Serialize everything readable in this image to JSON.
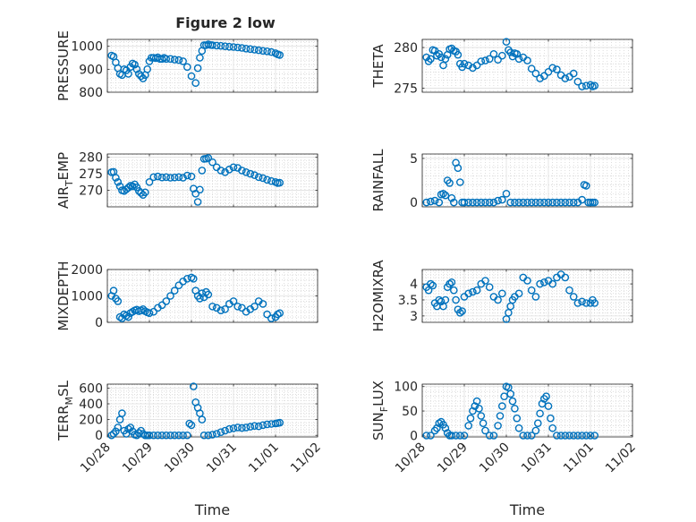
{
  "title": "Figure 2 low",
  "xlabel": "Time",
  "x_tick_labels": [
    "10/28",
    "10/29",
    "10/30",
    "10/31",
    "11/01",
    "11/02"
  ],
  "marker_color": "#0072BD",
  "chart_data": [
    {
      "type": "scatter",
      "ylabel": "PRESSURE",
      "ylim": [
        800,
        1030
      ],
      "yticks": [
        800,
        900,
        1000
      ],
      "x": [
        0.1,
        0.15,
        0.2,
        0.25,
        0.3,
        0.35,
        0.4,
        0.45,
        0.5,
        0.55,
        0.6,
        0.65,
        0.7,
        0.75,
        0.8,
        0.85,
        0.9,
        0.95,
        1.0,
        1.05,
        1.1,
        1.15,
        1.2,
        1.25,
        1.3,
        1.35,
        1.4,
        1.5,
        1.6,
        1.7,
        1.8,
        1.9,
        2.0,
        2.1,
        2.15,
        2.2,
        2.25,
        2.3,
        2.35,
        2.4,
        2.45,
        2.5,
        2.6,
        2.7,
        2.8,
        2.9,
        3.0,
        3.1,
        3.2,
        3.3,
        3.4,
        3.5,
        3.6,
        3.7,
        3.8,
        3.9,
        4.0,
        4.05,
        4.1
      ],
      "y": [
        960,
        955,
        930,
        905,
        880,
        875,
        900,
        895,
        880,
        910,
        925,
        920,
        900,
        880,
        870,
        860,
        875,
        900,
        935,
        950,
        950,
        948,
        952,
        945,
        945,
        950,
        945,
        945,
        942,
        940,
        935,
        910,
        870,
        840,
        905,
        950,
        980,
        1005,
        1005,
        1008,
        1006,
        1005,
        1003,
        1002,
        1000,
        998,
        997,
        995,
        993,
        990,
        988,
        985,
        983,
        980,
        978,
        975,
        970,
        965,
        962
      ]
    },
    {
      "type": "scatter",
      "ylabel": "THETA",
      "ylim": [
        274.5,
        281
      ],
      "yticks": [
        275,
        280
      ],
      "x": [
        0.1,
        0.15,
        0.2,
        0.25,
        0.3,
        0.35,
        0.4,
        0.45,
        0.5,
        0.55,
        0.6,
        0.65,
        0.7,
        0.75,
        0.8,
        0.85,
        0.9,
        0.95,
        1.0,
        1.1,
        1.2,
        1.3,
        1.4,
        1.5,
        1.6,
        1.7,
        1.8,
        1.9,
        2.0,
        2.05,
        2.1,
        2.15,
        2.2,
        2.25,
        2.3,
        2.4,
        2.5,
        2.6,
        2.7,
        2.8,
        2.9,
        3.0,
        3.1,
        3.2,
        3.3,
        3.4,
        3.5,
        3.6,
        3.7,
        3.8,
        3.9,
        4.0,
        4.05,
        4.1
      ],
      "y": [
        278.8,
        278.3,
        278.6,
        279.7,
        279.6,
        279.0,
        279.2,
        278.8,
        277.8,
        278.6,
        279.1,
        279.8,
        279.9,
        279.6,
        279.5,
        279.1,
        278.0,
        277.6,
        278.0,
        277.8,
        277.5,
        277.8,
        278.3,
        278.4,
        278.6,
        279.2,
        278.5,
        279.0,
        280.7,
        279.7,
        279.4,
        278.9,
        279.3,
        279.2,
        278.6,
        278.8,
        278.4,
        277.4,
        276.8,
        276.2,
        276.5,
        277.0,
        277.5,
        277.3,
        276.6,
        276.2,
        276.4,
        276.8,
        275.8,
        275.2,
        275.3,
        275.4,
        275.2,
        275.3
      ]
    },
    {
      "type": "scatter",
      "ylabel": "AIR_TEMP",
      "ylim": [
        265,
        281
      ],
      "yticks": [
        270,
        275,
        280
      ],
      "x": [
        0.1,
        0.15,
        0.2,
        0.25,
        0.3,
        0.35,
        0.4,
        0.45,
        0.5,
        0.55,
        0.6,
        0.65,
        0.7,
        0.75,
        0.8,
        0.85,
        0.9,
        1.0,
        1.1,
        1.2,
        1.3,
        1.4,
        1.5,
        1.6,
        1.7,
        1.8,
        1.9,
        2.0,
        2.05,
        2.1,
        2.15,
        2.2,
        2.25,
        2.3,
        2.35,
        2.4,
        2.5,
        2.6,
        2.7,
        2.8,
        2.9,
        3.0,
        3.1,
        3.2,
        3.3,
        3.4,
        3.5,
        3.6,
        3.7,
        3.8,
        3.9,
        4.0,
        4.05,
        4.1
      ],
      "y": [
        275.5,
        275.6,
        273.8,
        272.5,
        271.2,
        270.0,
        269.8,
        270.3,
        270.8,
        271.4,
        271.2,
        271.8,
        270.9,
        269.8,
        269.2,
        268.6,
        269.4,
        272.5,
        274.0,
        274.2,
        273.9,
        274.0,
        273.8,
        273.9,
        274.0,
        273.8,
        274.5,
        274.2,
        270.5,
        269.0,
        266.5,
        270.2,
        276.0,
        279.5,
        279.6,
        279.8,
        278.5,
        277.0,
        276.0,
        275.5,
        276.3,
        277.0,
        276.8,
        276.0,
        275.5,
        275.0,
        274.6,
        274.0,
        273.7,
        273.2,
        272.8,
        272.5,
        272.2,
        272.3
      ]
    },
    {
      "type": "scatter",
      "ylabel": "RAINFALL",
      "ylim": [
        -0.5,
        5.5
      ],
      "yticks": [
        0,
        5
      ],
      "x": [
        0.1,
        0.2,
        0.3,
        0.4,
        0.45,
        0.5,
        0.55,
        0.6,
        0.65,
        0.7,
        0.75,
        0.8,
        0.85,
        0.9,
        0.95,
        1.0,
        1.1,
        1.2,
        1.3,
        1.4,
        1.5,
        1.6,
        1.7,
        1.8,
        1.9,
        2.0,
        2.1,
        2.2,
        2.3,
        2.4,
        2.5,
        2.6,
        2.7,
        2.8,
        2.9,
        3.0,
        3.1,
        3.2,
        3.3,
        3.4,
        3.5,
        3.6,
        3.7,
        3.8,
        3.85,
        3.9,
        3.95,
        4.0,
        4.05,
        4.1
      ],
      "y": [
        0.0,
        0.1,
        0.2,
        0.0,
        0.9,
        1.0,
        0.8,
        2.5,
        2.2,
        0.5,
        0.0,
        4.5,
        3.9,
        2.3,
        0.0,
        0.0,
        0.0,
        0.0,
        0.0,
        0.0,
        0.0,
        0.0,
        0.0,
        0.2,
        0.3,
        1.0,
        0.0,
        0.0,
        0.0,
        0.0,
        0.0,
        0.0,
        0.0,
        0.0,
        0.0,
        0.0,
        0.0,
        0.0,
        0.0,
        0.0,
        0.0,
        0.0,
        0.0,
        0.3,
        2.0,
        1.9,
        0.0,
        0.0,
        0.0,
        0.0
      ]
    },
    {
      "type": "scatter",
      "ylabel": "MIXDEPTH",
      "ylim": [
        0,
        2000
      ],
      "yticks": [
        0,
        1000,
        2000
      ],
      "x": [
        0.1,
        0.15,
        0.2,
        0.25,
        0.3,
        0.35,
        0.4,
        0.45,
        0.5,
        0.55,
        0.6,
        0.65,
        0.7,
        0.75,
        0.8,
        0.85,
        0.9,
        0.95,
        1.0,
        1.1,
        1.2,
        1.3,
        1.4,
        1.5,
        1.6,
        1.7,
        1.8,
        1.9,
        2.0,
        2.05,
        2.1,
        2.15,
        2.2,
        2.25,
        2.3,
        2.35,
        2.4,
        2.5,
        2.6,
        2.7,
        2.8,
        2.9,
        3.0,
        3.1,
        3.2,
        3.3,
        3.4,
        3.5,
        3.6,
        3.7,
        3.8,
        3.9,
        4.0,
        4.05,
        4.1
      ],
      "y": [
        1000,
        1200,
        900,
        800,
        200,
        150,
        300,
        250,
        200,
        350,
        400,
        450,
        480,
        420,
        450,
        500,
        420,
        380,
        350,
        400,
        550,
        650,
        800,
        1000,
        1200,
        1400,
        1550,
        1650,
        1700,
        1650,
        1200,
        1000,
        900,
        1100,
        950,
        1150,
        1050,
        600,
        550,
        450,
        500,
        700,
        800,
        600,
        550,
        400,
        500,
        600,
        800,
        700,
        300,
        150,
        200,
        300,
        350
      ]
    },
    {
      "type": "scatter",
      "ylabel": "H2OMIXRA",
      "ylim": [
        2.8,
        4.45
      ],
      "yticks": [
        3,
        3.5,
        4
      ],
      "x": [
        0.1,
        0.15,
        0.2,
        0.25,
        0.3,
        0.35,
        0.4,
        0.45,
        0.5,
        0.55,
        0.6,
        0.65,
        0.7,
        0.75,
        0.8,
        0.85,
        0.9,
        0.95,
        1.0,
        1.1,
        1.2,
        1.3,
        1.4,
        1.5,
        1.6,
        1.7,
        1.8,
        1.9,
        2.0,
        2.05,
        2.1,
        2.15,
        2.2,
        2.3,
        2.4,
        2.5,
        2.6,
        2.7,
        2.8,
        2.9,
        3.0,
        3.1,
        3.2,
        3.3,
        3.4,
        3.5,
        3.6,
        3.7,
        3.8,
        3.9,
        4.0,
        4.05,
        4.1
      ],
      "y": [
        3.9,
        3.8,
        4.0,
        3.95,
        3.4,
        3.3,
        3.5,
        3.45,
        3.3,
        3.5,
        3.9,
        4.0,
        4.05,
        3.8,
        3.5,
        3.2,
        3.1,
        3.15,
        3.6,
        3.7,
        3.75,
        3.8,
        4.0,
        4.1,
        3.9,
        3.6,
        3.5,
        3.7,
        2.9,
        3.1,
        3.3,
        3.5,
        3.6,
        3.7,
        4.2,
        4.1,
        3.8,
        3.6,
        4.0,
        4.05,
        4.1,
        4.0,
        4.2,
        4.3,
        4.2,
        3.8,
        3.6,
        3.4,
        3.45,
        3.4,
        3.4,
        3.5,
        3.4
      ]
    },
    {
      "type": "scatter",
      "ylabel": "TERR_MSL",
      "ylim": [
        -20,
        650
      ],
      "yticks": [
        0,
        200,
        400,
        600
      ],
      "x": [
        0.1,
        0.15,
        0.2,
        0.25,
        0.3,
        0.35,
        0.4,
        0.45,
        0.5,
        0.55,
        0.6,
        0.65,
        0.7,
        0.75,
        0.8,
        0.85,
        0.9,
        0.95,
        1.0,
        1.1,
        1.2,
        1.3,
        1.4,
        1.5,
        1.6,
        1.7,
        1.8,
        1.9,
        1.95,
        2.0,
        2.05,
        2.1,
        2.15,
        2.2,
        2.25,
        2.3,
        2.4,
        2.5,
        2.6,
        2.7,
        2.8,
        2.9,
        3.0,
        3.1,
        3.2,
        3.3,
        3.4,
        3.5,
        3.6,
        3.7,
        3.8,
        3.9,
        4.0,
        4.05,
        4.1
      ],
      "y": [
        0,
        20,
        50,
        100,
        200,
        280,
        60,
        20,
        80,
        100,
        50,
        10,
        0,
        30,
        60,
        20,
        0,
        0,
        0,
        0,
        0,
        0,
        0,
        0,
        0,
        0,
        0,
        0,
        150,
        130,
        620,
        420,
        350,
        280,
        200,
        0,
        0,
        10,
        20,
        40,
        60,
        80,
        90,
        100,
        95,
        100,
        110,
        120,
        115,
        130,
        140,
        145,
        150,
        155,
        160
      ]
    },
    {
      "type": "scatter",
      "ylabel": "SUN_FLUX",
      "ylim": [
        -3,
        105
      ],
      "yticks": [
        0,
        50,
        100
      ],
      "x": [
        0.1,
        0.2,
        0.3,
        0.35,
        0.4,
        0.45,
        0.5,
        0.55,
        0.6,
        0.65,
        0.7,
        0.8,
        0.9,
        1.0,
        1.1,
        1.15,
        1.2,
        1.25,
        1.3,
        1.35,
        1.4,
        1.45,
        1.5,
        1.6,
        1.7,
        1.8,
        1.85,
        1.9,
        1.95,
        2.0,
        2.05,
        2.1,
        2.15,
        2.2,
        2.25,
        2.3,
        2.4,
        2.5,
        2.6,
        2.7,
        2.75,
        2.8,
        2.85,
        2.9,
        2.95,
        3.0,
        3.05,
        3.1,
        3.2,
        3.3,
        3.4,
        3.5,
        3.6,
        3.7,
        3.8,
        3.9,
        4.0,
        4.1
      ],
      "y": [
        0,
        0,
        10,
        15,
        25,
        28,
        22,
        15,
        5,
        0,
        0,
        0,
        0,
        0,
        20,
        35,
        50,
        60,
        70,
        55,
        40,
        25,
        10,
        0,
        0,
        20,
        40,
        60,
        80,
        100,
        98,
        85,
        70,
        55,
        35,
        15,
        0,
        0,
        0,
        10,
        25,
        45,
        65,
        75,
        80,
        60,
        35,
        15,
        0,
        0,
        0,
        0,
        0,
        0,
        0,
        0,
        0,
        0
      ]
    }
  ]
}
